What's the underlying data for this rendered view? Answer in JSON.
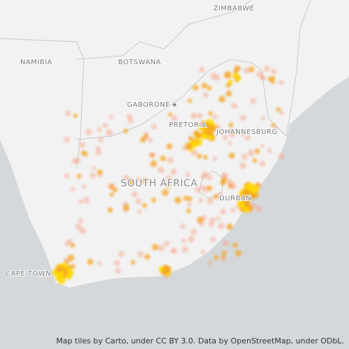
{
  "labels": {
    "zimbabwe": "ZIMBABWE",
    "namibia": "NAMIBIA",
    "botswana": "BOTSWANA",
    "gaborone": "GABORONE",
    "pretoria": "PRETORIA",
    "johannesburg": "JOHANNESBURG",
    "south_africa": "SOUTH AFRICA",
    "durban": "DURBAN",
    "cape_town": "CAPE TOWN"
  },
  "attribution": "Map tiles by Carto, under CC BY 3.0. Data by OpenStreetMap, under ODbL."
}
